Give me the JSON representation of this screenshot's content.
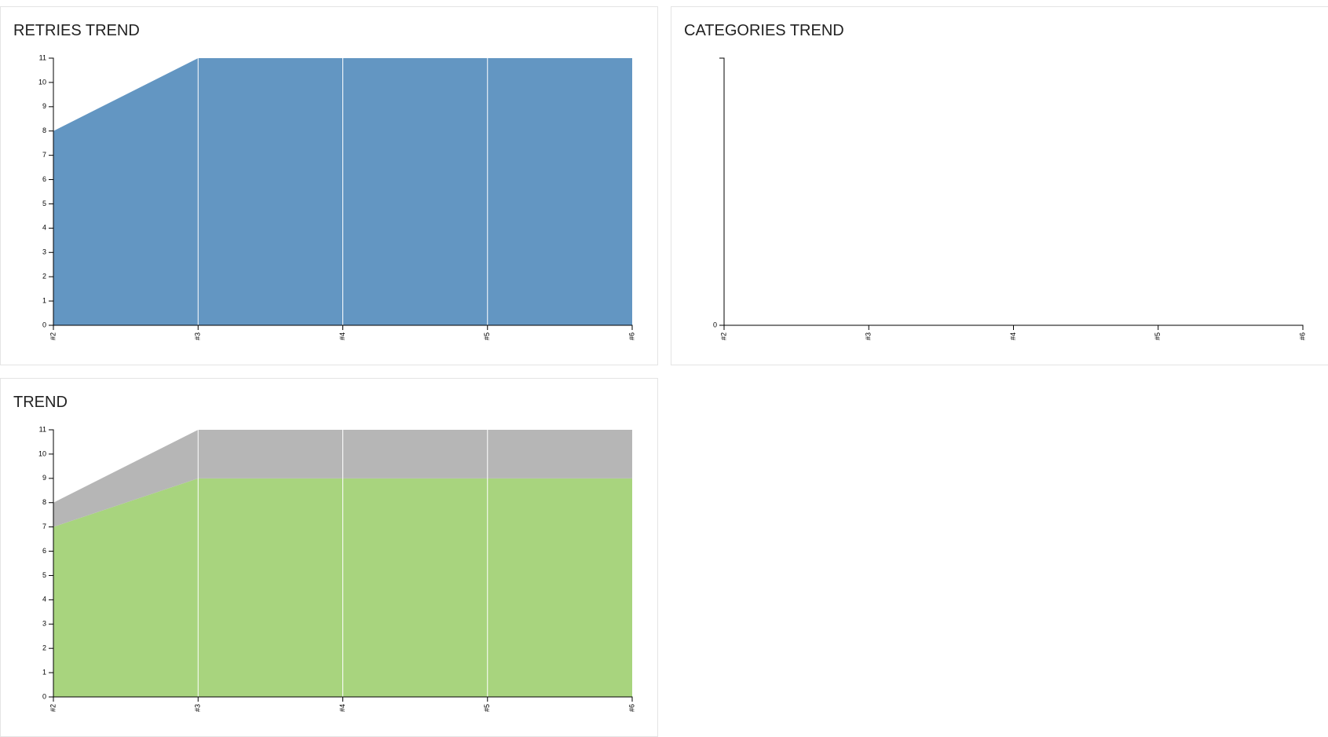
{
  "chart_data": [
    {
      "type": "area",
      "title": "RETRIES TREND",
      "categories": [
        "#2",
        "#3",
        "#4",
        "#5",
        "#6"
      ],
      "series": [
        {
          "color": "#6396c2",
          "values": [
            8,
            11,
            11,
            11,
            11
          ]
        }
      ],
      "ylim": [
        0,
        11
      ],
      "yticks": [
        0,
        1,
        2,
        3,
        4,
        5,
        6,
        7,
        8,
        9,
        10,
        11
      ],
      "grid": true
    },
    {
      "type": "area",
      "title": "CATEGORIES TREND",
      "categories": [
        "#2",
        "#3",
        "#4",
        "#5",
        "#6"
      ],
      "series": [],
      "ylim": [
        0,
        1
      ],
      "yticks": [
        0
      ],
      "grid": true
    },
    {
      "type": "area",
      "title": "TREND",
      "stacked": true,
      "categories": [
        "#2",
        "#3",
        "#4",
        "#5",
        "#6"
      ],
      "series": [
        {
          "color": "#a8d47e",
          "values": [
            7,
            9,
            9,
            9,
            9
          ]
        },
        {
          "color": "#b6b6b6",
          "values": [
            1,
            2,
            2,
            2,
            2
          ]
        }
      ],
      "ylim": [
        0,
        11
      ],
      "yticks": [
        0,
        1,
        2,
        3,
        4,
        5,
        6,
        7,
        8,
        9,
        10,
        11
      ],
      "grid": true
    }
  ]
}
